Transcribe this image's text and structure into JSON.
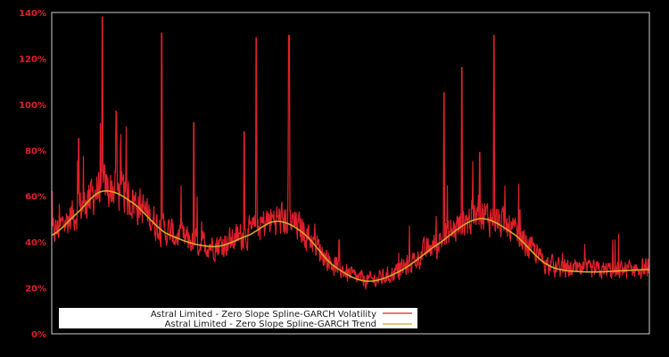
{
  "chart_data": {
    "type": "line",
    "title": "",
    "xlabel": "",
    "ylabel": "",
    "ylim": [
      0,
      140
    ],
    "y_ticks": [
      "0%",
      "20%",
      "40%",
      "60%",
      "80%",
      "100%",
      "120%",
      "140%"
    ],
    "y_tick_values": [
      0,
      20,
      40,
      60,
      80,
      100,
      120,
      140
    ],
    "x_ticks": [],
    "grid": false,
    "legend_position": "lower left",
    "background": "#000000",
    "axis_color": "#cccccc",
    "tick_label_color": "#e0202a",
    "series": [
      {
        "name": "Astral Limited - Zero Slope Spline-GARCH Volatility",
        "color": "#e0202a",
        "description": "Daily volatility, noisy with spikes",
        "spikes": [
          {
            "x_frac": 0.085,
            "value": 138
          },
          {
            "x_frac": 0.184,
            "value": 131
          },
          {
            "x_frac": 0.342,
            "value": 129
          },
          {
            "x_frac": 0.397,
            "value": 130
          },
          {
            "x_frac": 0.686,
            "value": 116
          },
          {
            "x_frac": 0.74,
            "value": 130
          },
          {
            "x_frac": 0.238,
            "value": 92
          },
          {
            "x_frac": 0.322,
            "value": 88
          },
          {
            "x_frac": 0.656,
            "value": 105
          },
          {
            "x_frac": 0.045,
            "value": 85
          },
          {
            "x_frac": 0.108,
            "value": 97
          },
          {
            "x_frac": 0.716,
            "value": 79
          }
        ]
      },
      {
        "name": "Astral Limited - Zero Slope Spline-GARCH Trend",
        "color": "#d4a82a",
        "points": [
          {
            "x_frac": 0.0,
            "value": 43
          },
          {
            "x_frac": 0.04,
            "value": 52
          },
          {
            "x_frac": 0.083,
            "value": 62
          },
          {
            "x_frac": 0.13,
            "value": 58
          },
          {
            "x_frac": 0.19,
            "value": 44
          },
          {
            "x_frac": 0.27,
            "value": 38
          },
          {
            "x_frac": 0.33,
            "value": 43
          },
          {
            "x_frac": 0.375,
            "value": 49
          },
          {
            "x_frac": 0.42,
            "value": 44
          },
          {
            "x_frac": 0.47,
            "value": 30
          },
          {
            "x_frac": 0.525,
            "value": 23
          },
          {
            "x_frac": 0.58,
            "value": 27
          },
          {
            "x_frac": 0.64,
            "value": 38
          },
          {
            "x_frac": 0.713,
            "value": 50
          },
          {
            "x_frac": 0.77,
            "value": 44
          },
          {
            "x_frac": 0.83,
            "value": 30
          },
          {
            "x_frac": 0.89,
            "value": 27
          },
          {
            "x_frac": 1.0,
            "value": 28
          }
        ]
      }
    ]
  },
  "legend": {
    "items": [
      {
        "label": "Astral Limited - Zero Slope Spline-GARCH Volatility",
        "color": "#e0202a"
      },
      {
        "label": "Astral Limited - Zero Slope Spline-GARCH Trend",
        "color": "#d4a82a"
      }
    ]
  }
}
